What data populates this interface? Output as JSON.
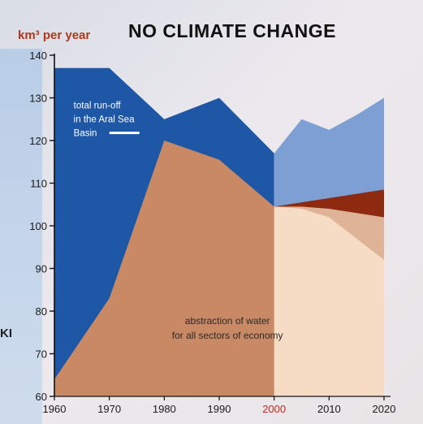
{
  "chart_data": {
    "type": "area",
    "title": "NO CLIMATE CHANGE",
    "ylabel": "km³ per year",
    "xlabel": "",
    "x": [
      1960,
      1970,
      1980,
      1990,
      2000,
      2005,
      2010,
      2015,
      2020
    ],
    "xticks": [
      1960,
      1970,
      1980,
      1990,
      2000,
      2010,
      2020
    ],
    "xtick_labels": [
      "1960",
      "1970",
      "1980",
      "1990",
      "2000",
      "2010",
      "2020"
    ],
    "highlight_tick": "2000",
    "yticks": [
      60,
      70,
      80,
      90,
      100,
      110,
      120,
      130,
      140
    ],
    "ytick_labels": [
      "60",
      "70",
      "80",
      "90",
      "100",
      "110",
      "120",
      "130",
      "140"
    ],
    "ylim": [
      60,
      140
    ],
    "xlim": [
      1960,
      2020
    ],
    "series": [
      {
        "name": "total run-off in the Aral Sea Basin",
        "segment": "historical",
        "x": [
          1960,
          1970,
          1980,
          1990,
          2000
        ],
        "values": [
          137,
          137,
          125,
          130,
          117
        ],
        "color": "#1d57a5"
      },
      {
        "name": "abstraction of water for all sectors of economy",
        "segment": "historical",
        "x": [
          1960,
          1970,
          1980,
          1990,
          2000
        ],
        "values": [
          64,
          83,
          120,
          115.5,
          104.5
        ],
        "color": "#c88964"
      },
      {
        "segment": "projection",
        "x": [
          2000,
          2005,
          2010,
          2015,
          2020
        ],
        "values": [
          117,
          125,
          122.5,
          126,
          130
        ],
        "color": "#7e9fd3"
      },
      {
        "segment": "projection",
        "x": [
          2000,
          2005,
          2010,
          2015,
          2020
        ],
        "values": [
          104.5,
          105.5,
          106.5,
          107.5,
          108.5
        ],
        "color": "#8d2a10"
      },
      {
        "segment": "projection",
        "x": [
          2000,
          2005,
          2010,
          2015,
          2020
        ],
        "values": [
          104.5,
          104.5,
          104,
          103,
          102
        ],
        "color": "#dfb397"
      },
      {
        "segment": "projection",
        "x": [
          2000,
          2005,
          2010,
          2015,
          2020
        ],
        "values": [
          104.5,
          104,
          102,
          97,
          92
        ],
        "color": "#f6dcc4"
      }
    ],
    "annotations": [
      {
        "text": [
          "total run-off",
          "in the Aral Sea",
          "Basin"
        ],
        "series": "total run-off in the Aral Sea Basin"
      },
      {
        "text": [
          "abstraction of water",
          "for all sectors of economy"
        ],
        "series": "abstraction of water for all sectors of economy"
      }
    ]
  },
  "edge_fragment": "KI"
}
